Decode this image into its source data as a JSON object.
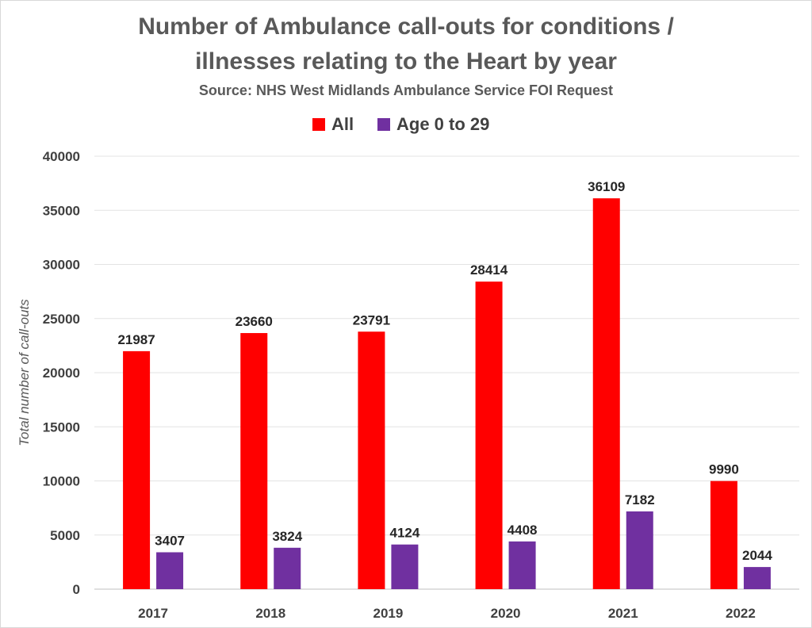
{
  "chart_data": {
    "type": "bar",
    "title": "Number of Ambulance call-outs for conditions / illnesses relating to the Heart by year",
    "title_lines": [
      "Number of Ambulance call-outs for conditions /",
      "illnesses relating to the Heart by year"
    ],
    "subtitle": "Source: NHS West Midlands Ambulance Service FOI Request",
    "xlabel": "",
    "ylabel": "Total number of call-outs",
    "categories": [
      "2017",
      "2018",
      "2019",
      "2020",
      "2021",
      "2022"
    ],
    "series": [
      {
        "name": "All",
        "color": "#ff0000",
        "values": [
          21987,
          23660,
          23791,
          28414,
          36109,
          9990
        ]
      },
      {
        "name": "Age 0 to 29",
        "color": "#7030a0",
        "values": [
          3407,
          3824,
          4124,
          4408,
          7182,
          2044
        ]
      }
    ],
    "ylim": [
      0,
      40000
    ],
    "yticks": [
      0,
      5000,
      10000,
      15000,
      20000,
      25000,
      30000,
      35000,
      40000
    ],
    "grid": true,
    "legend_position": "top",
    "data_labels": true
  }
}
